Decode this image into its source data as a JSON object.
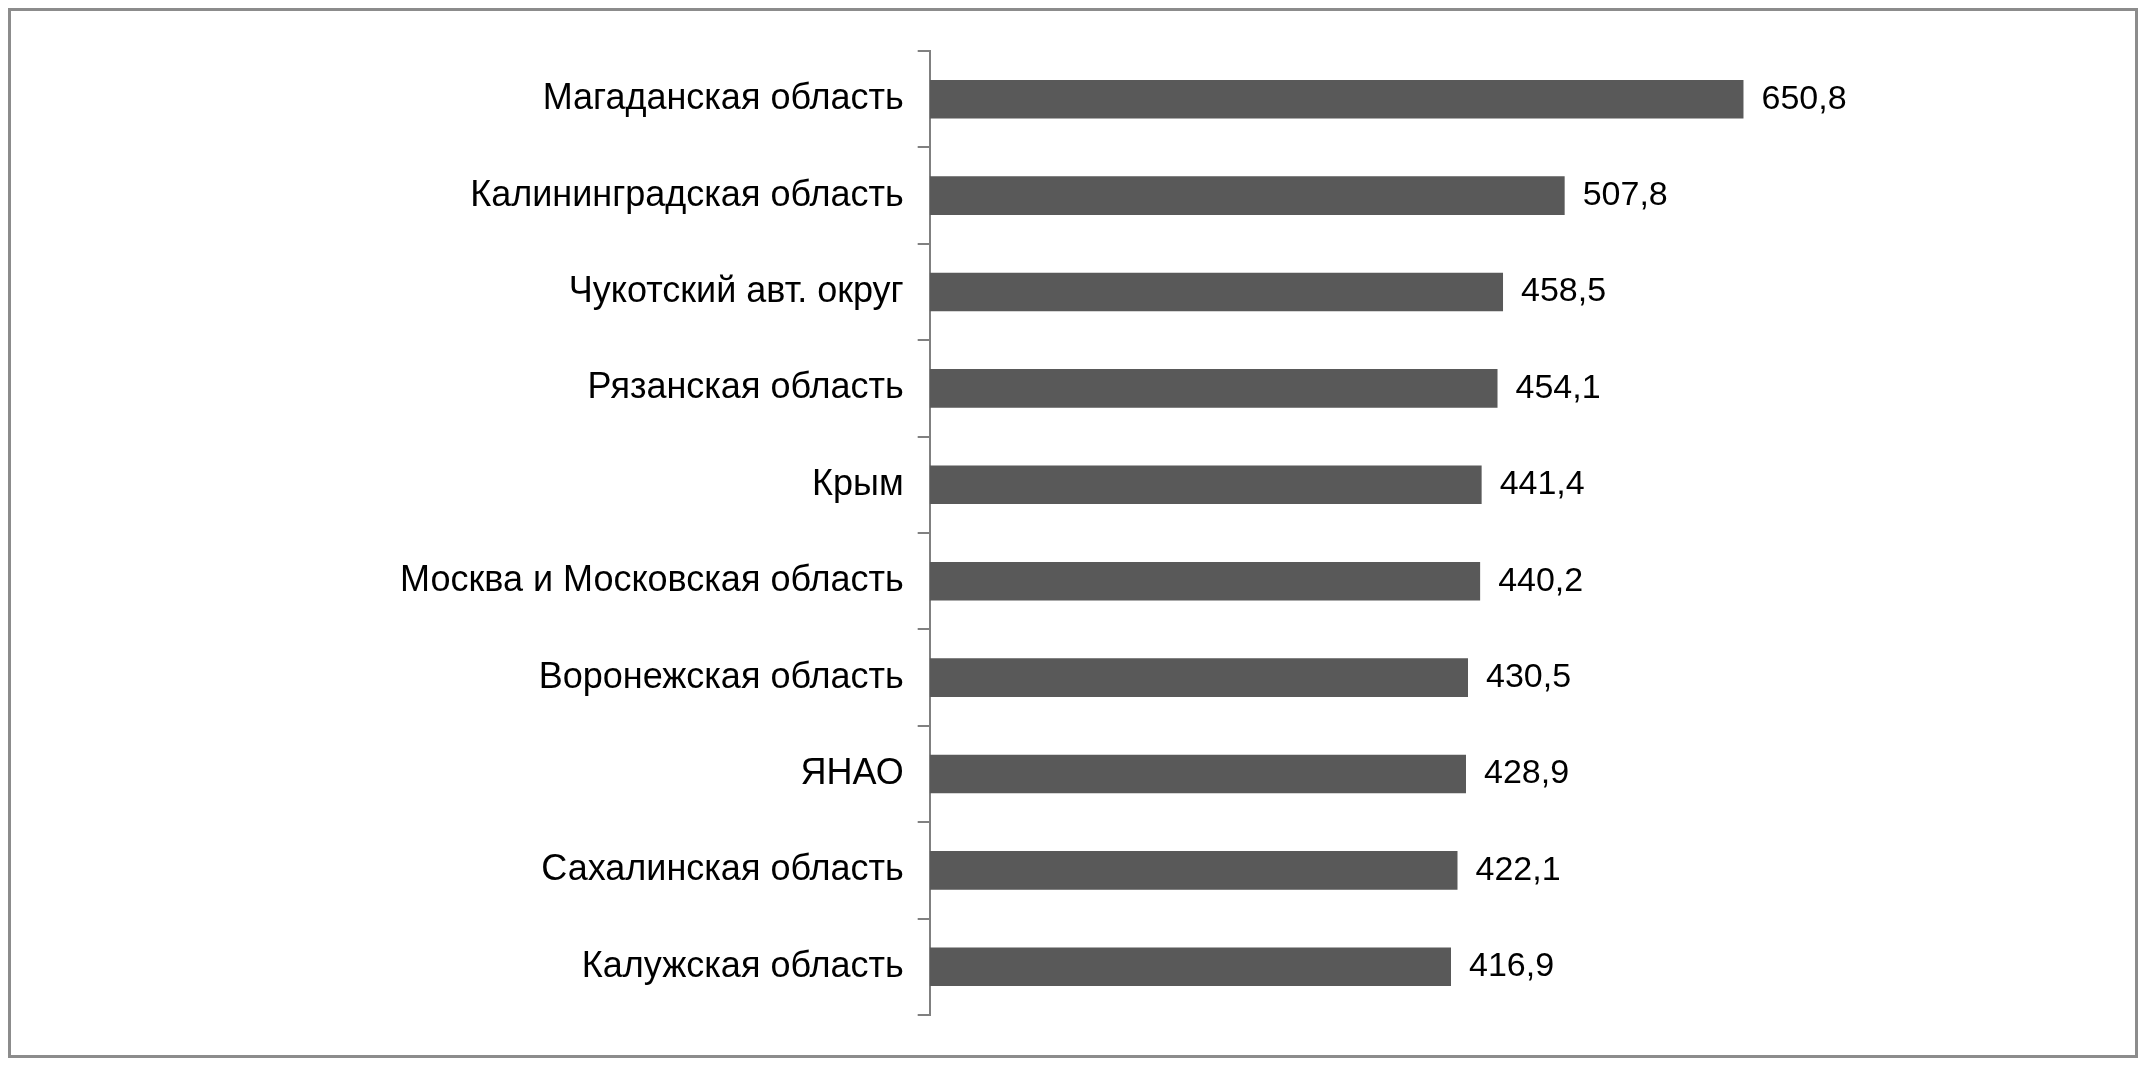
{
  "chart_data": {
    "type": "bar",
    "orientation": "horizontal",
    "categories": [
      "Магаданская область",
      "Калининградская область",
      "Чукотский авт. округ",
      "Рязанская область",
      "Крым",
      "Москва и Московская область",
      "Воронежская область",
      "ЯНАО",
      "Сахалинская область",
      "Калужская область"
    ],
    "values": [
      650.8,
      507.8,
      458.5,
      454.1,
      441.4,
      440.2,
      430.5,
      428.9,
      422.1,
      416.9
    ],
    "value_labels": [
      "650,8",
      "507,8",
      "458,5",
      "454,1",
      "441,4",
      "440,2",
      "430,5",
      "428,9",
      "422,1",
      "416,9"
    ],
    "color": "#595959",
    "legend": false,
    "tick_labels": "y"
  }
}
